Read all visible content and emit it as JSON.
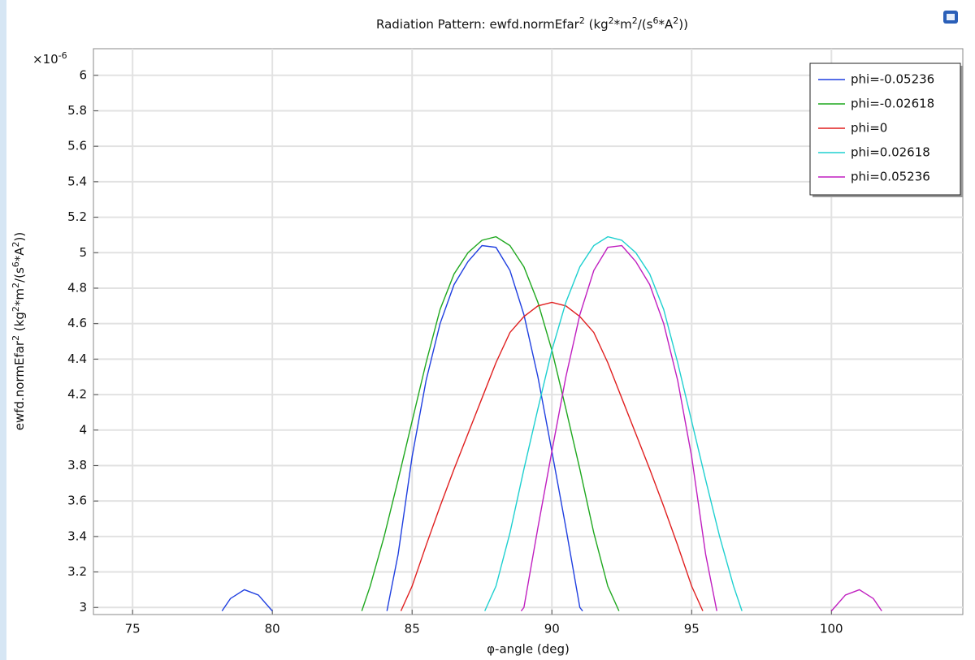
{
  "chart_data": {
    "type": "line",
    "title": [
      "Radiation Pattern: ewfd.normEfar",
      "2",
      " (kg",
      "2",
      "*m",
      "2",
      "/(s",
      "6",
      "*A",
      "2",
      "))"
    ],
    "xlabel": "φ-angle (deg)",
    "ylabel": [
      "ewfd.normEfar",
      "2",
      " (kg",
      "2",
      "*m",
      "2",
      "/(s",
      "6",
      "*A",
      "2",
      "))"
    ],
    "y_multiplier": [
      "×10",
      "-6"
    ],
    "xlim": [
      73.6,
      104.7
    ],
    "ylim": [
      2.96,
      6.15
    ],
    "xticks": [
      75,
      80,
      85,
      90,
      95,
      100
    ],
    "yticks": [
      3,
      3.2,
      3.4,
      3.6,
      3.8,
      4,
      4.2,
      4.4,
      4.6,
      4.8,
      5,
      5.2,
      5.4,
      5.6,
      5.8,
      6
    ],
    "grid": true,
    "legend": "upper right",
    "series": [
      {
        "name": "phi=-0.05236",
        "color": "#1f3fe0",
        "x": [
          78.2,
          78.5,
          79,
          79.5,
          80,
          null,
          84.1,
          84.5,
          85,
          85.5,
          86,
          86.5,
          87,
          87.5,
          88,
          88.5,
          89,
          89.5,
          90,
          90.5,
          91,
          91.1
        ],
        "values": [
          2.98,
          3.05,
          3.1,
          3.07,
          2.98,
          null,
          2.98,
          3.3,
          3.85,
          4.28,
          4.6,
          4.82,
          4.95,
          5.04,
          5.03,
          4.9,
          4.65,
          4.3,
          3.88,
          3.45,
          3.0,
          2.98
        ]
      },
      {
        "name": "phi=-0.02618",
        "color": "#1fa81f",
        "x": [
          83.2,
          83.5,
          84,
          84.5,
          85,
          85.5,
          86,
          86.5,
          87,
          87.5,
          88,
          88.5,
          89,
          89.5,
          90,
          90.5,
          91,
          91.5,
          92,
          92.4
        ],
        "values": [
          2.98,
          3.12,
          3.4,
          3.72,
          4.05,
          4.38,
          4.68,
          4.88,
          5.0,
          5.07,
          5.09,
          5.04,
          4.92,
          4.72,
          4.45,
          4.12,
          3.78,
          3.42,
          3.12,
          2.98
        ]
      },
      {
        "name": "phi=0",
        "color": "#e01f1f",
        "x": [
          84.6,
          85,
          85.5,
          86,
          86.5,
          87,
          87.5,
          88,
          88.5,
          89,
          89.5,
          90,
          90.5,
          91,
          91.5,
          92,
          92.5,
          93,
          93.5,
          94,
          94.5,
          95,
          95.4
        ],
        "values": [
          2.98,
          3.12,
          3.35,
          3.57,
          3.78,
          3.98,
          4.18,
          4.38,
          4.55,
          4.64,
          4.7,
          4.72,
          4.7,
          4.64,
          4.55,
          4.38,
          4.18,
          3.98,
          3.78,
          3.57,
          3.35,
          3.12,
          2.98
        ]
      },
      {
        "name": "phi=0.02618",
        "color": "#1fd0d0",
        "x": [
          87.6,
          88,
          88.5,
          89,
          89.5,
          90,
          90.5,
          91,
          91.5,
          92,
          92.5,
          93,
          93.5,
          94,
          94.5,
          95,
          95.5,
          96,
          96.5,
          96.8
        ],
        "values": [
          2.98,
          3.12,
          3.42,
          3.78,
          4.12,
          4.45,
          4.72,
          4.92,
          5.04,
          5.09,
          5.07,
          5.0,
          4.88,
          4.68,
          4.38,
          4.05,
          3.72,
          3.4,
          3.12,
          2.98
        ]
      },
      {
        "name": "phi=0.05236",
        "color": "#c01fc0",
        "x": [
          88.9,
          89,
          89.5,
          90,
          90.5,
          91,
          91.5,
          92,
          92.5,
          93,
          93.5,
          94,
          94.5,
          95,
          95.5,
          95.9,
          null,
          100,
          100.5,
          101,
          101.5,
          101.8
        ],
        "values": [
          2.98,
          3.0,
          3.45,
          3.88,
          4.3,
          4.65,
          4.9,
          5.03,
          5.04,
          4.95,
          4.82,
          4.6,
          4.28,
          3.85,
          3.3,
          2.98,
          null,
          2.98,
          3.07,
          3.1,
          3.05,
          2.98
        ]
      }
    ]
  }
}
